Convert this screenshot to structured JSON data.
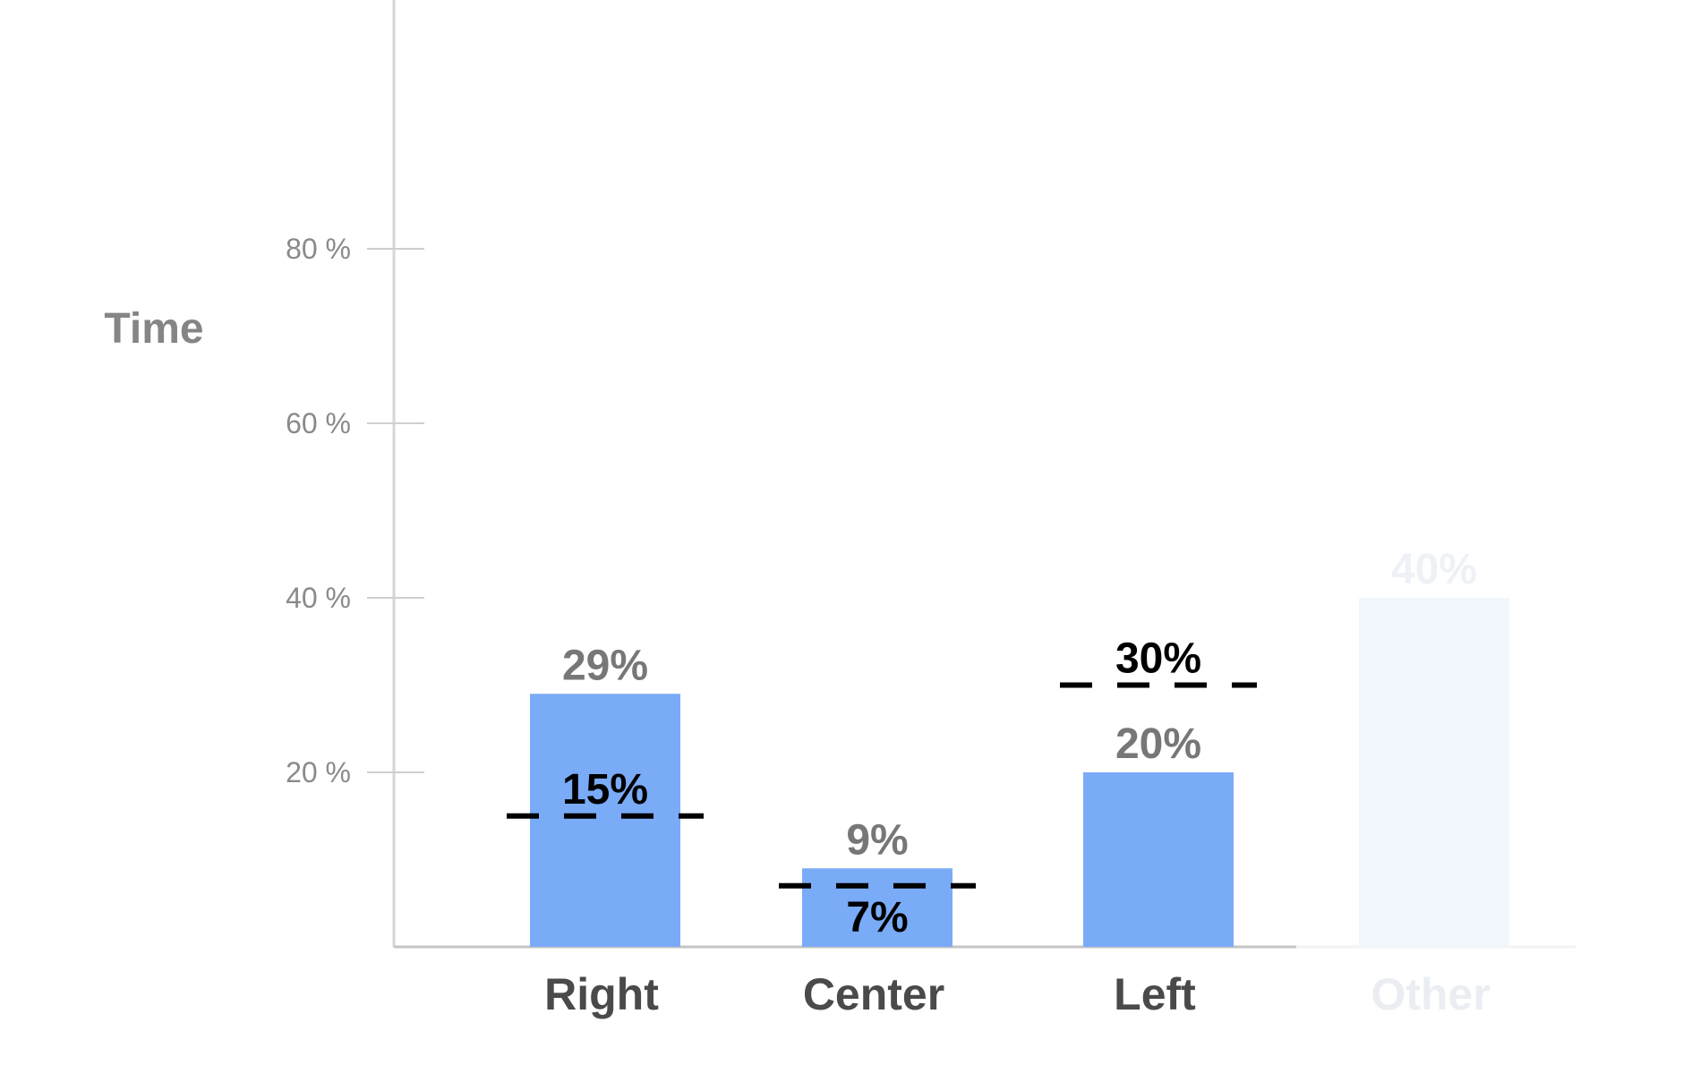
{
  "chart_data": {
    "type": "bar",
    "ylabel": "Time",
    "ylim": [
      0,
      90
    ],
    "yticks": [
      {
        "value": 20,
        "label": "20 %"
      },
      {
        "value": 40,
        "label": "40 %"
      },
      {
        "value": 60,
        "label": "60 %"
      },
      {
        "value": 80,
        "label": "80 %"
      }
    ],
    "categories": [
      "Right",
      "Center",
      "Left",
      "Other"
    ],
    "values": [
      29,
      9,
      20,
      40
    ],
    "value_labels": [
      "29%",
      "9%",
      "20%",
      "40%"
    ],
    "reference_values": [
      15,
      7,
      30,
      null
    ],
    "reference_labels": [
      "15%",
      "7%",
      "30%",
      ""
    ],
    "faded": [
      false,
      false,
      false,
      true
    ],
    "grid": false,
    "colors": {
      "bar": "#7aabf7",
      "bar_faded": "#f2f6fd",
      "reference_line": "#000000",
      "axis": "#cfcfcf"
    }
  }
}
